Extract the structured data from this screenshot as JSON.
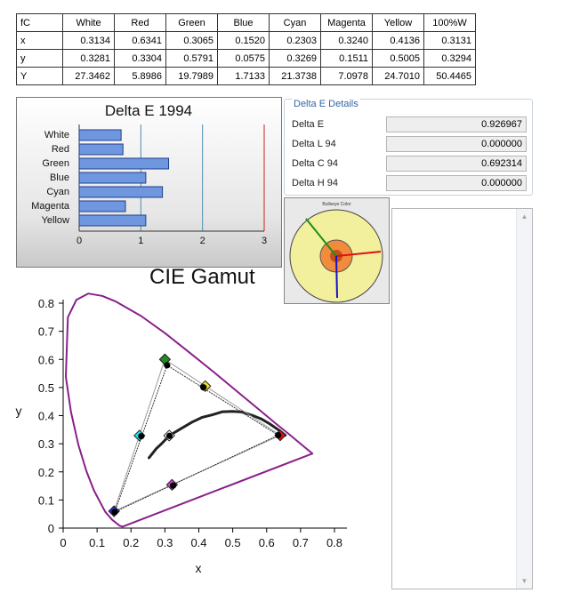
{
  "table": {
    "corner": "fC",
    "headers": [
      "White",
      "Red",
      "Green",
      "Blue",
      "Cyan",
      "Magenta",
      "Yellow",
      "100%W"
    ],
    "rows": [
      {
        "label": "x",
        "values": [
          "0.3134",
          "0.6341",
          "0.3065",
          "0.1520",
          "0.2303",
          "0.3240",
          "0.4136",
          "0.3131"
        ]
      },
      {
        "label": "y",
        "values": [
          "0.3281",
          "0.3304",
          "0.5791",
          "0.0575",
          "0.3269",
          "0.1511",
          "0.5005",
          "0.3294"
        ]
      },
      {
        "label": "Y",
        "values": [
          "27.3462",
          "5.8986",
          "19.7989",
          "1.7133",
          "21.3738",
          "7.0978",
          "24.7010",
          "50.4465"
        ]
      }
    ]
  },
  "delta_e_chart": {
    "chart_data": {
      "type": "bar",
      "title": "Delta E 1994",
      "categories": [
        "White",
        "Red",
        "Green",
        "Blue",
        "Cyan",
        "Magenta",
        "Yellow"
      ],
      "values": [
        0.68,
        0.71,
        1.45,
        1.08,
        1.35,
        0.75,
        1.08
      ],
      "xlim": [
        0,
        3
      ],
      "ticks": [
        "0",
        "1",
        "2",
        "3"
      ],
      "colors": {
        "bar": "#6f97e0",
        "bar_border": "#1f3f8a",
        "gridline": "#4a8fb0",
        "limit_line": "#cc2222"
      }
    }
  },
  "details": {
    "title": "Delta E Details",
    "rows": [
      {
        "label": "Delta E",
        "value": "0.926967"
      },
      {
        "label": "Delta L 94",
        "value": "0.000000"
      },
      {
        "label": "Delta C 94",
        "value": "0.692314"
      },
      {
        "label": "Delta H 94",
        "value": "0.000000"
      }
    ]
  },
  "bullseye": {
    "title": "Bullseye Color",
    "colors": {
      "outer": "#f2f09c",
      "inner": "#f28c3c",
      "core": "#c2501c",
      "green": "#1a8f1a",
      "red": "#e01010",
      "blue": "#1414c8"
    }
  },
  "listbox": {
    "up_arrow": "▲",
    "down_arrow": "▼"
  },
  "gamut": {
    "chart_data": {
      "type": "scatter",
      "title": "CIE Gamut",
      "xlabel": "x",
      "ylabel": "y",
      "xlim": [
        0,
        0.8
      ],
      "ylim": [
        0,
        0.8
      ],
      "xticks": [
        "0",
        "0.1",
        "0.2",
        "0.3",
        "0.4",
        "0.5",
        "0.6",
        "0.7",
        "0.8"
      ],
      "yticks": [
        "0",
        "0.1",
        "0.2",
        "0.3",
        "0.4",
        "0.5",
        "0.6",
        "0.7",
        "0.8"
      ],
      "spectral_locus": [
        [
          0.175,
          0.005
        ],
        [
          0.166,
          0.009
        ],
        [
          0.144,
          0.03
        ],
        [
          0.124,
          0.058
        ],
        [
          0.091,
          0.133
        ],
        [
          0.069,
          0.201
        ],
        [
          0.045,
          0.295
        ],
        [
          0.023,
          0.413
        ],
        [
          0.008,
          0.538
        ],
        [
          0.014,
          0.75
        ],
        [
          0.039,
          0.812
        ],
        [
          0.074,
          0.834
        ],
        [
          0.115,
          0.826
        ],
        [
          0.155,
          0.806
        ],
        [
          0.23,
          0.754
        ],
        [
          0.302,
          0.692
        ],
        [
          0.373,
          0.624
        ],
        [
          0.444,
          0.555
        ],
        [
          0.512,
          0.487
        ],
        [
          0.575,
          0.424
        ],
        [
          0.627,
          0.372
        ],
        [
          0.666,
          0.334
        ],
        [
          0.692,
          0.308
        ],
        [
          0.735,
          0.265
        ]
      ],
      "planckian_locus": [
        [
          0.253,
          0.25
        ],
        [
          0.275,
          0.283
        ],
        [
          0.29,
          0.3
        ],
        [
          0.313,
          0.329
        ],
        [
          0.345,
          0.352
        ],
        [
          0.38,
          0.377
        ],
        [
          0.41,
          0.394
        ],
        [
          0.44,
          0.403
        ],
        [
          0.47,
          0.414
        ],
        [
          0.5,
          0.415
        ],
        [
          0.527,
          0.413
        ],
        [
          0.56,
          0.4
        ],
        [
          0.585,
          0.388
        ],
        [
          0.61,
          0.37
        ],
        [
          0.64,
          0.345
        ],
        [
          0.655,
          0.33
        ]
      ],
      "targets": [
        {
          "name": "Red",
          "x": 0.64,
          "y": 0.33,
          "color": "#e01010"
        },
        {
          "name": "Green",
          "x": 0.3,
          "y": 0.6,
          "color": "#1f8a1f"
        },
        {
          "name": "Blue",
          "x": 0.15,
          "y": 0.06,
          "color": "#2a2ae0"
        },
        {
          "name": "Cyan",
          "x": 0.225,
          "y": 0.329,
          "color": "#22e0e8"
        },
        {
          "name": "Magenta",
          "x": 0.321,
          "y": 0.154,
          "color": "#e040e0"
        },
        {
          "name": "Yellow",
          "x": 0.419,
          "y": 0.505,
          "color": "#f0e020"
        },
        {
          "name": "White",
          "x": 0.3127,
          "y": 0.329,
          "color": "#ffffff"
        }
      ],
      "measured": [
        {
          "name": "Red",
          "x": 0.6341,
          "y": 0.3304
        },
        {
          "name": "Green",
          "x": 0.3065,
          "y": 0.5791
        },
        {
          "name": "Blue",
          "x": 0.152,
          "y": 0.0575
        },
        {
          "name": "Cyan",
          "x": 0.2303,
          "y": 0.3269
        },
        {
          "name": "Magenta",
          "x": 0.324,
          "y": 0.1511
        },
        {
          "name": "Yellow",
          "x": 0.4136,
          "y": 0.5005
        },
        {
          "name": "White",
          "x": 0.3134,
          "y": 0.3281
        }
      ]
    }
  }
}
